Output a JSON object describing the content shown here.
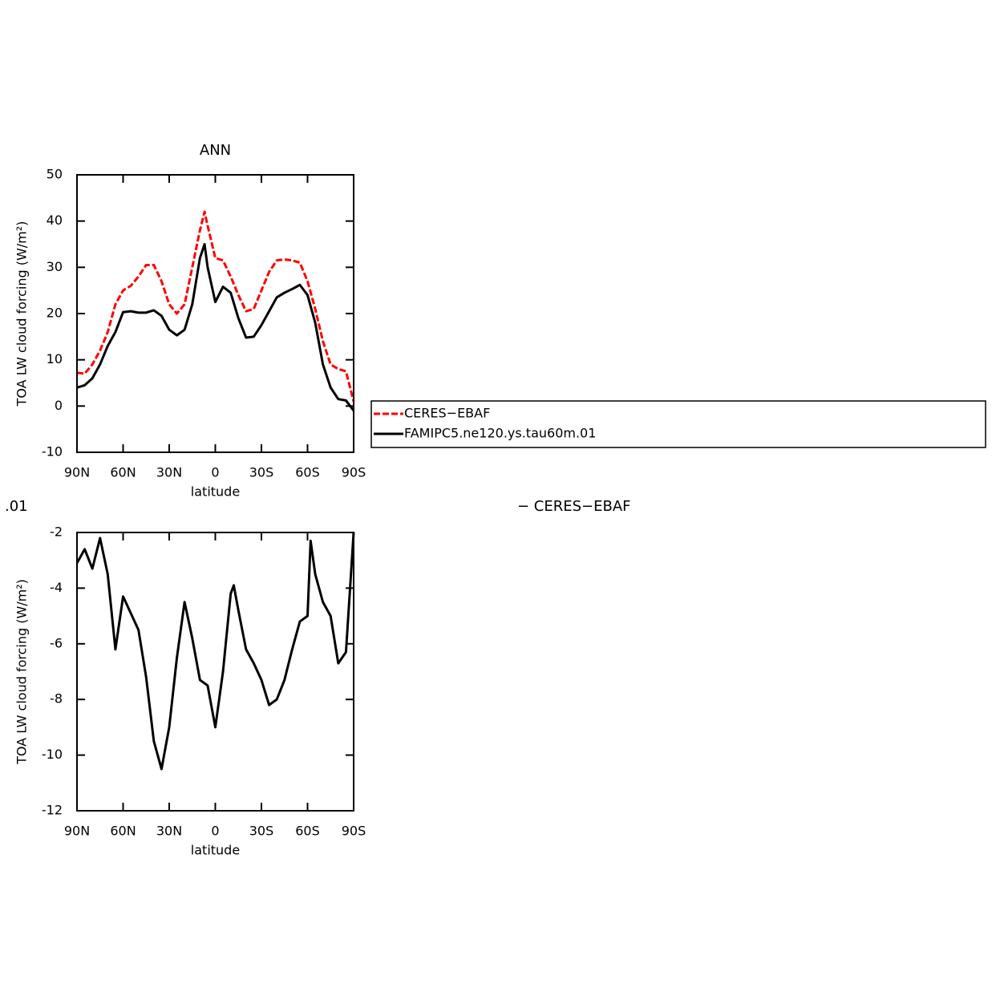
{
  "chart_data": [
    {
      "type": "line",
      "title": "ANN",
      "xlabel": "latitude",
      "ylabel": "TOA LW cloud forcing (W/m²)",
      "x": [
        90,
        85,
        80,
        75,
        70,
        65,
        60,
        55,
        50,
        45,
        40,
        35,
        30,
        25,
        20,
        15,
        10,
        7,
        5,
        0,
        -5,
        -10,
        -15,
        -20,
        -25,
        -30,
        -35,
        -40,
        -45,
        -50,
        -55,
        -60,
        -65,
        -70,
        -75,
        -80,
        -85,
        -90
      ],
      "xlim": [
        90,
        -90
      ],
      "xticks": [
        {
          "value": 90,
          "label": "90N"
        },
        {
          "value": 60,
          "label": "60N"
        },
        {
          "value": 30,
          "label": "30N"
        },
        0,
        {
          "value": -30,
          "label": "30S"
        },
        {
          "value": -60,
          "label": "60S"
        },
        {
          "value": -90,
          "label": "90S"
        }
      ],
      "ylim": [
        -10,
        50
      ],
      "yticks": [
        -10,
        0,
        10,
        20,
        30,
        40,
        50
      ],
      "legend": "right",
      "series": [
        {
          "name": "CERES−EBAF",
          "color": "#ff0000",
          "dashed": true,
          "values": [
            7.2,
            7,
            9,
            12,
            16,
            22,
            25,
            26,
            28,
            30.5,
            30.5,
            27,
            22,
            20,
            22,
            30,
            38,
            42,
            39,
            32,
            31.5,
            28,
            24,
            20.5,
            21,
            25,
            29,
            31.5,
            31.7,
            31.5,
            31,
            27,
            21,
            14,
            9,
            8,
            7.5,
            1
          ]
        },
        {
          "name": "FAMIPC5.ne120.ys.tau60m.01",
          "color": "#000000",
          "dashed": false,
          "values": [
            4,
            4.5,
            6,
            9,
            13,
            16,
            20.3,
            20.5,
            20.2,
            20.2,
            20.7,
            19.5,
            16.5,
            15.3,
            16.5,
            22,
            32,
            35,
            30,
            22.5,
            25.8,
            24.5,
            19,
            14.8,
            15,
            17.5,
            20.5,
            23.5,
            24.5,
            25.3,
            26.2,
            24,
            18,
            9,
            4,
            1.5,
            1.2,
            -1
          ]
        }
      ]
    },
    {
      "type": "line",
      "title_left": ".01",
      "title_right": "− CERES−EBAF",
      "xlabel": "latitude",
      "ylabel": "TOA LW cloud forcing (W/m²)",
      "x": [
        90,
        85,
        80,
        75,
        70,
        65,
        60,
        55,
        50,
        45,
        40,
        35,
        30,
        25,
        20,
        15,
        10,
        5,
        0,
        -5,
        -10,
        -12,
        -15,
        -20,
        -25,
        -30,
        -35,
        -40,
        -45,
        -50,
        -55,
        -60,
        -62,
        -65,
        -70,
        -75,
        -80,
        -85,
        -90
      ],
      "xlim": [
        90,
        -90
      ],
      "xticks": [
        {
          "value": 90,
          "label": "90N"
        },
        {
          "value": 60,
          "label": "60N"
        },
        {
          "value": 30,
          "label": "30N"
        },
        0,
        {
          "value": -30,
          "label": "30S"
        },
        {
          "value": -60,
          "label": "60S"
        },
        {
          "value": -90,
          "label": "90S"
        }
      ],
      "ylim": [
        -12,
        -2
      ],
      "yticks": [
        -12,
        -10,
        -8,
        -6,
        -4,
        -2
      ],
      "series": [
        {
          "color": "#000000",
          "dashed": false,
          "values": [
            -3.1,
            -2.6,
            -3.3,
            -2.2,
            -3.5,
            -6.2,
            -4.3,
            -4.9,
            -5.5,
            -7.2,
            -9.5,
            -10.5,
            -9,
            -6.5,
            -4.5,
            -5.8,
            -7.3,
            -7.5,
            -9,
            -7,
            -4.2,
            -3.9,
            -4.8,
            -6.2,
            -6.7,
            -7.3,
            -8.2,
            -8,
            -7.3,
            -6.2,
            -5.2,
            -5,
            -2.3,
            -3.5,
            -4.5,
            -5,
            -6.7,
            -6.3,
            -2
          ]
        }
      ]
    }
  ]
}
